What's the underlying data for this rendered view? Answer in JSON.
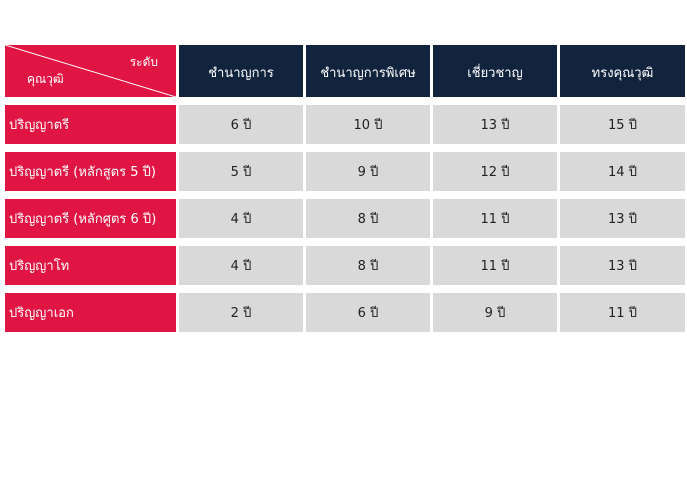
{
  "table": {
    "corner": {
      "level_label": "ระดับ",
      "qualification_label": "คุณวุฒิ"
    },
    "columns": [
      "ชำนาญการ",
      "ชำนาญการพิเศษ",
      "เชี่ยวชาญ",
      "ทรงคุณวุฒิ"
    ],
    "rows": [
      {
        "label": "ปริญญาตรี",
        "values": [
          "6 ปี",
          "10 ปี",
          "13 ปี",
          "15 ปี"
        ]
      },
      {
        "label": "ปริญญาตรี (หลักสูตร 5 ปี)",
        "values": [
          "5 ปี",
          "9 ปี",
          "12 ปี",
          "14 ปี"
        ]
      },
      {
        "label": "ปริญญาตรี (หลักศูตร 6 ปี)",
        "values": [
          "4 ปี",
          "8 ปี",
          "11 ปี",
          "13 ปี"
        ]
      },
      {
        "label": "ปริญญาโท",
        "values": [
          "4 ปี",
          "8 ปี",
          "11 ปี",
          "13 ปี"
        ]
      },
      {
        "label": "ปริญญาเอก",
        "values": [
          "2 ปี",
          "6 ปี",
          "9 ปี",
          "11 ปี"
        ]
      }
    ]
  },
  "colors": {
    "header_bg": "#12243d",
    "label_bg": "#e11544",
    "value_bg": "#d9d9d9"
  }
}
